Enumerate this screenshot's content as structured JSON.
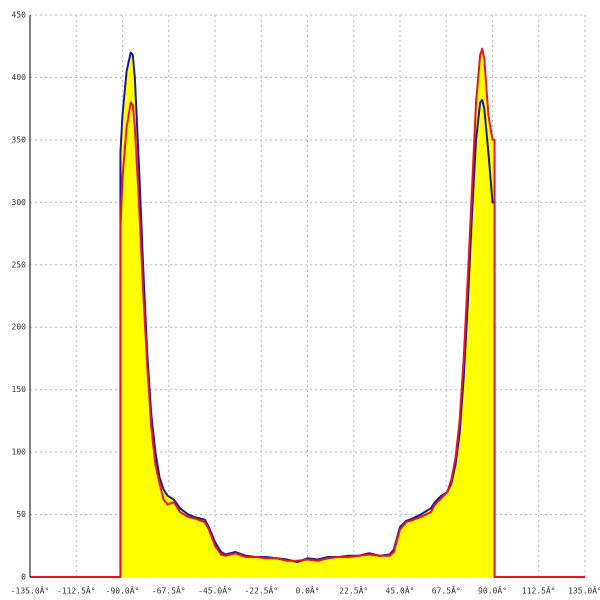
{
  "chart_data": {
    "type": "line",
    "x": [
      -135,
      -91,
      -91,
      -90,
      -88,
      -86,
      -85,
      -84,
      -82,
      -80,
      -78,
      -76,
      -74,
      -72,
      -70,
      -68,
      -65,
      -62,
      -58,
      -55,
      -50,
      -48,
      -45,
      -42,
      -40,
      -35,
      -30,
      -25,
      -20,
      -15,
      -10,
      -5,
      0,
      5,
      10,
      15,
      20,
      25,
      30,
      35,
      40,
      42,
      45,
      48,
      50,
      55,
      60,
      62,
      65,
      68,
      70,
      72,
      74,
      76,
      78,
      80,
      82,
      84,
      85,
      86,
      88,
      90,
      91,
      91,
      135
    ],
    "series": [
      {
        "color": "#1a1aa0",
        "values": [
          0,
          0,
          340,
          370,
          405,
          420,
          418,
          400,
          330,
          250,
          180,
          130,
          100,
          80,
          70,
          65,
          62,
          55,
          50,
          48,
          46,
          40,
          28,
          20,
          18,
          20,
          17,
          16,
          16,
          15,
          14,
          12,
          15,
          14,
          16,
          16,
          17,
          17,
          19,
          17,
          18,
          22,
          40,
          45,
          46,
          50,
          55,
          60,
          65,
          68,
          75,
          90,
          115,
          160,
          220,
          290,
          350,
          380,
          382,
          375,
          340,
          300,
          300,
          0,
          0
        ]
      },
      {
        "color": "#e8141e",
        "values": [
          0,
          0,
          280,
          320,
          360,
          380,
          378,
          360,
          300,
          230,
          170,
          120,
          90,
          75,
          62,
          58,
          60,
          52,
          48,
          47,
          44,
          38,
          25,
          18,
          17,
          19,
          16,
          16,
          15,
          15,
          13,
          13,
          14,
          13,
          15,
          16,
          16,
          17,
          18,
          17,
          17,
          20,
          38,
          44,
          45,
          48,
          52,
          58,
          63,
          68,
          78,
          95,
          125,
          175,
          240,
          310,
          380,
          418,
          423,
          415,
          370,
          350,
          350,
          0,
          0
        ]
      }
    ],
    "fill_color": "#ffff00",
    "xlim": [
      -135,
      135
    ],
    "xticks": [
      {
        "value": -135,
        "label": "-135.0Â°"
      },
      {
        "value": -112.5,
        "label": "-112.5Â°"
      },
      {
        "value": -90,
        "label": "-90.0Â°"
      },
      {
        "value": -67.5,
        "label": "-67.5Â°"
      },
      {
        "value": -45,
        "label": "-45.0Â°"
      },
      {
        "value": -22.5,
        "label": "-22.5Â°"
      },
      {
        "value": 0,
        "label": "0.0Â°"
      },
      {
        "value": 22.5,
        "label": "22.5Â°"
      },
      {
        "value": 45,
        "label": "45.0Â°"
      },
      {
        "value": 67.5,
        "label": "67.5Â°"
      },
      {
        "value": 90,
        "label": "90.0Â°"
      },
      {
        "value": 112.5,
        "label": "112.5Â°"
      },
      {
        "value": 135,
        "label": "135.0Â°"
      }
    ],
    "ylim": [
      0,
      450
    ],
    "yticks": [
      0,
      50,
      100,
      150,
      200,
      250,
      300,
      350,
      400,
      450
    ],
    "grid": true
  }
}
